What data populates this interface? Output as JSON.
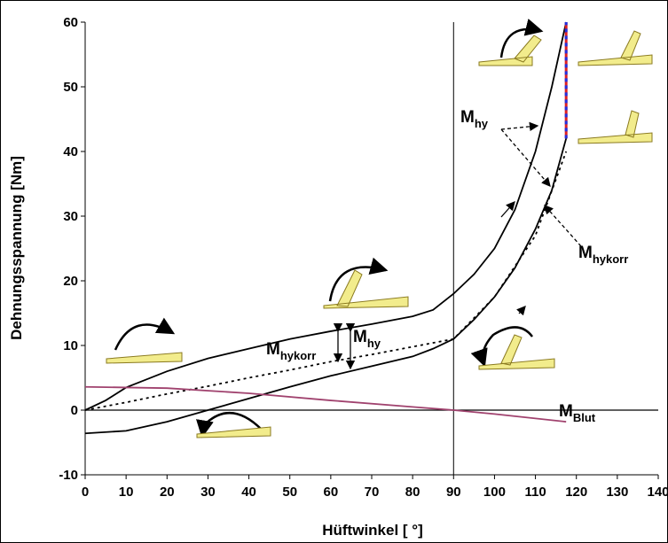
{
  "chart_data": {
    "type": "line",
    "x_label": "Hüftwinkel [ °]",
    "y_label": "Dehnungsspannung [Nm]",
    "xlim": [
      0,
      140
    ],
    "xticks": [
      0,
      10,
      20,
      30,
      40,
      50,
      60,
      70,
      80,
      90,
      100,
      110,
      120,
      130,
      140
    ],
    "ylim": [
      -10,
      60
    ],
    "yticks": [
      -10,
      0,
      10,
      20,
      30,
      40,
      50,
      60
    ],
    "series": [
      {
        "color": "#000000",
        "style": "solid",
        "x": [
          0,
          5,
          10,
          20,
          30,
          40,
          50,
          60,
          70,
          80,
          85,
          90,
          95,
          100,
          105,
          110,
          114,
          117.5
        ],
        "values": [
          0,
          1.5,
          3.5,
          6,
          8,
          9.5,
          11,
          12.2,
          13.3,
          14.5,
          15.5,
          18,
          21,
          25,
          31,
          40,
          50,
          60
        ]
      },
      {
        "color": "#000000",
        "style": "solid",
        "x": [
          0,
          10,
          20,
          30,
          40,
          50,
          60,
          70,
          80,
          85,
          90,
          95,
          100,
          105,
          110,
          114,
          117.5
        ],
        "values": [
          -3.6,
          -3.2,
          -1.8,
          0,
          1.8,
          3.6,
          5.3,
          6.8,
          8.3,
          9.5,
          11,
          14,
          17.5,
          22,
          28,
          34,
          42
        ]
      },
      {
        "color": "#000000",
        "style": "dotted",
        "x": [
          0,
          10,
          20,
          30,
          40,
          50,
          60,
          70,
          80,
          90,
          100,
          110,
          117.5
        ],
        "values": [
          0,
          1.2,
          2.5,
          3.7,
          5,
          6.2,
          7.5,
          8.6,
          9.8,
          11,
          17.5,
          27,
          40
        ]
      },
      {
        "color": "#a0426e",
        "style": "solid",
        "x": [
          0,
          20,
          40,
          60,
          80,
          90,
          100,
          117.5
        ],
        "values": [
          3.6,
          3.4,
          2.6,
          1.5,
          0.5,
          0,
          -0.6,
          -1.8
        ]
      }
    ],
    "annotations": [
      {
        "text": "M",
        "sub": "hy"
      },
      {
        "text": "M",
        "sub": "hykorr"
      },
      {
        "text": "M",
        "sub": "hy"
      },
      {
        "text": "M",
        "sub": "hykorr"
      },
      {
        "text": "M",
        "sub": "Blut"
      }
    ]
  }
}
